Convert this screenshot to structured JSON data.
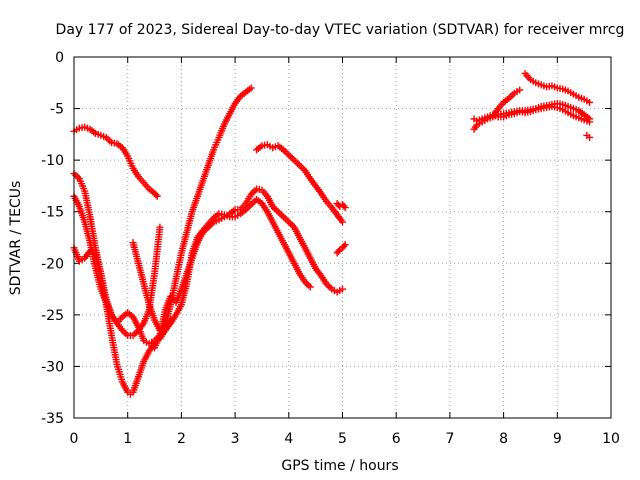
{
  "chart_data": {
    "type": "scatter",
    "title": "Day 177 of 2023, Sidereal Day-to-day VTEC variation (SDTVAR) for receiver mrcg",
    "xlabel": "GPS time / hours",
    "ylabel": "SDTVAR / TECUs",
    "xlim": [
      0,
      10
    ],
    "ylim": [
      -35,
      0
    ],
    "x_ticks": [
      0,
      1,
      2,
      3,
      4,
      5,
      6,
      7,
      8,
      9,
      10
    ],
    "y_ticks": [
      0,
      -5,
      -10,
      -15,
      -20,
      -25,
      -30,
      -35
    ],
    "x_tick_labels": [
      "0",
      "1",
      "2",
      "3",
      "4",
      "5",
      "6",
      "7",
      "8",
      "9",
      "10"
    ],
    "y_tick_labels": [
      "0",
      "-5",
      "-10",
      "-15",
      "-20",
      "-25",
      "-30",
      "-35"
    ],
    "grid": true,
    "marker": "plus",
    "colors": {
      "series": "#ff0000",
      "grid": "#a0a0a0",
      "axes": "#000000"
    },
    "series": [
      {
        "points": [
          [
            0.0,
            -7.2
          ],
          [
            0.1,
            -6.9
          ],
          [
            0.2,
            -6.8
          ],
          [
            0.3,
            -7.0
          ],
          [
            0.4,
            -7.4
          ],
          [
            0.5,
            -7.6
          ],
          [
            0.6,
            -7.8
          ],
          [
            0.7,
            -8.3
          ],
          [
            0.8,
            -8.4
          ],
          [
            0.9,
            -8.8
          ],
          [
            1.0,
            -9.6
          ],
          [
            1.1,
            -10.8
          ],
          [
            1.2,
            -11.6
          ],
          [
            1.3,
            -12.2
          ],
          [
            1.4,
            -12.8
          ],
          [
            1.5,
            -13.2
          ],
          [
            1.55,
            -13.5
          ]
        ]
      },
      {
        "points": [
          [
            0.0,
            -11.3
          ],
          [
            0.1,
            -11.8
          ],
          [
            0.2,
            -13.0
          ],
          [
            0.3,
            -15.5
          ],
          [
            0.4,
            -18.5
          ],
          [
            0.5,
            -21.0
          ],
          [
            0.6,
            -24.0
          ],
          [
            0.7,
            -27.0
          ],
          [
            0.8,
            -29.8
          ],
          [
            0.9,
            -31.5
          ],
          [
            1.0,
            -32.5
          ],
          [
            1.05,
            -32.7
          ],
          [
            1.1,
            -32.5
          ],
          [
            1.2,
            -31.0
          ],
          [
            1.3,
            -29.5
          ],
          [
            1.4,
            -28.5
          ],
          [
            1.5,
            -27.8
          ]
        ]
      },
      {
        "points": [
          [
            0.0,
            -13.5
          ],
          [
            0.1,
            -14.5
          ],
          [
            0.2,
            -16.0
          ],
          [
            0.3,
            -18.0
          ],
          [
            0.4,
            -20.5
          ],
          [
            0.5,
            -22.5
          ],
          [
            0.6,
            -23.8
          ],
          [
            0.7,
            -25.0
          ],
          [
            0.8,
            -25.8
          ],
          [
            0.9,
            -26.5
          ],
          [
            1.0,
            -27.0
          ],
          [
            1.1,
            -27.0
          ],
          [
            1.2,
            -26.5
          ],
          [
            1.3,
            -25.8
          ],
          [
            1.4,
            -24.5
          ],
          [
            1.5,
            -21.0
          ],
          [
            1.6,
            -16.5
          ]
        ]
      },
      {
        "points": [
          [
            0.0,
            -18.5
          ],
          [
            0.1,
            -19.8
          ],
          [
            0.2,
            -19.5
          ],
          [
            0.3,
            -18.8
          ],
          [
            0.4,
            -19.0
          ],
          [
            0.5,
            -21.0
          ],
          [
            0.6,
            -23.5
          ],
          [
            0.7,
            -25.0
          ],
          [
            0.8,
            -25.8
          ],
          [
            0.9,
            -25.2
          ],
          [
            1.0,
            -24.8
          ],
          [
            1.1,
            -25.2
          ],
          [
            1.2,
            -26.2
          ],
          [
            1.3,
            -27.5
          ],
          [
            1.4,
            -27.8
          ],
          [
            1.5,
            -27.5
          ],
          [
            1.6,
            -27.0
          ],
          [
            1.7,
            -26.5
          ],
          [
            1.8,
            -25.5
          ]
        ]
      },
      {
        "points": [
          [
            1.1,
            -18.0
          ],
          [
            1.2,
            -20.0
          ],
          [
            1.3,
            -22.0
          ],
          [
            1.4,
            -24.0
          ],
          [
            1.5,
            -25.5
          ],
          [
            1.6,
            -26.5
          ],
          [
            1.7,
            -26.0
          ],
          [
            1.8,
            -24.0
          ],
          [
            1.9,
            -21.5
          ],
          [
            2.0,
            -19.0
          ],
          [
            2.1,
            -17.0
          ],
          [
            2.2,
            -15.0
          ],
          [
            2.3,
            -13.5
          ],
          [
            2.4,
            -12.0
          ],
          [
            2.5,
            -10.5
          ],
          [
            2.6,
            -9.0
          ],
          [
            2.7,
            -7.8
          ],
          [
            2.8,
            -6.5
          ],
          [
            2.9,
            -5.5
          ],
          [
            3.0,
            -4.5
          ],
          [
            3.1,
            -3.8
          ],
          [
            3.2,
            -3.4
          ],
          [
            3.3,
            -3.0
          ]
        ]
      },
      {
        "points": [
          [
            1.5,
            -28.2
          ],
          [
            1.6,
            -27.0
          ],
          [
            1.7,
            -24.5
          ],
          [
            1.8,
            -23.2
          ],
          [
            1.9,
            -23.8
          ],
          [
            2.0,
            -22.5
          ],
          [
            2.1,
            -21.0
          ],
          [
            2.2,
            -19.5
          ],
          [
            2.3,
            -18.0
          ],
          [
            2.4,
            -17.0
          ],
          [
            2.5,
            -16.5
          ],
          [
            2.6,
            -16.0
          ],
          [
            2.7,
            -15.8
          ],
          [
            2.8,
            -15.5
          ],
          [
            2.9,
            -15.2
          ],
          [
            3.0,
            -14.8
          ],
          [
            3.1,
            -14.8
          ],
          [
            3.2,
            -14.2
          ],
          [
            3.3,
            -13.3
          ],
          [
            3.4,
            -12.8
          ],
          [
            3.5,
            -12.9
          ],
          [
            3.6,
            -13.5
          ],
          [
            3.7,
            -14.5
          ],
          [
            3.8,
            -15.0
          ],
          [
            3.9,
            -15.5
          ],
          [
            4.0,
            -16.0
          ],
          [
            4.1,
            -16.5
          ],
          [
            4.2,
            -17.5
          ],
          [
            4.3,
            -18.5
          ],
          [
            4.4,
            -19.5
          ],
          [
            4.5,
            -20.5
          ],
          [
            4.6,
            -21.2
          ],
          [
            4.7,
            -22.0
          ],
          [
            4.8,
            -22.5
          ],
          [
            4.9,
            -22.8
          ],
          [
            5.0,
            -22.5
          ]
        ]
      },
      {
        "points": [
          [
            1.6,
            -27.3
          ],
          [
            1.7,
            -26.5
          ],
          [
            1.8,
            -25.8
          ],
          [
            1.9,
            -25.0
          ],
          [
            2.0,
            -24.0
          ],
          [
            2.1,
            -22.0
          ],
          [
            2.2,
            -19.0
          ],
          [
            2.3,
            -17.5
          ],
          [
            2.4,
            -16.8
          ],
          [
            2.5,
            -16.2
          ],
          [
            2.6,
            -15.6
          ],
          [
            2.7,
            -15.2
          ],
          [
            2.8,
            -15.3
          ],
          [
            2.9,
            -15.5
          ],
          [
            3.0,
            -15.5
          ],
          [
            3.1,
            -15.2
          ],
          [
            3.2,
            -14.8
          ],
          [
            3.3,
            -14.3
          ],
          [
            3.4,
            -13.8
          ],
          [
            3.5,
            -14.2
          ],
          [
            3.6,
            -15.0
          ],
          [
            3.7,
            -16.0
          ],
          [
            3.8,
            -17.0
          ],
          [
            3.9,
            -18.0
          ],
          [
            4.0,
            -19.0
          ],
          [
            4.1,
            -20.0
          ],
          [
            4.2,
            -21.0
          ],
          [
            4.3,
            -21.8
          ],
          [
            4.4,
            -22.3
          ]
        ]
      },
      {
        "points": [
          [
            3.4,
            -9.0
          ],
          [
            3.5,
            -8.6
          ],
          [
            3.6,
            -8.5
          ],
          [
            3.7,
            -8.8
          ],
          [
            3.8,
            -8.6
          ],
          [
            3.9,
            -9.0
          ],
          [
            4.0,
            -9.5
          ],
          [
            4.1,
            -10.0
          ],
          [
            4.2,
            -10.5
          ],
          [
            4.3,
            -11.0
          ],
          [
            4.4,
            -11.8
          ],
          [
            4.5,
            -12.5
          ],
          [
            4.6,
            -13.2
          ],
          [
            4.7,
            -14.0
          ],
          [
            4.8,
            -14.6
          ],
          [
            4.9,
            -15.3
          ],
          [
            5.0,
            -16.0
          ]
        ]
      },
      {
        "points": [
          [
            4.9,
            -14.2
          ],
          [
            4.95,
            -14.5
          ],
          [
            5.0,
            -14.3
          ],
          [
            5.05,
            -14.6
          ]
        ]
      },
      {
        "points": [
          [
            4.9,
            -19.0
          ],
          [
            4.95,
            -18.7
          ],
          [
            5.0,
            -18.5
          ],
          [
            5.05,
            -18.2
          ]
        ]
      },
      {
        "points": [
          [
            7.45,
            -7.0
          ],
          [
            7.5,
            -6.6
          ],
          [
            7.6,
            -6.3
          ],
          [
            7.7,
            -6.0
          ],
          [
            7.8,
            -5.8
          ],
          [
            7.9,
            -5.6
          ],
          [
            8.0,
            -5.5
          ],
          [
            8.1,
            -5.4
          ],
          [
            8.2,
            -5.3
          ],
          [
            8.3,
            -5.2
          ],
          [
            8.4,
            -5.2
          ],
          [
            8.5,
            -5.1
          ],
          [
            8.6,
            -5.0
          ],
          [
            8.7,
            -4.8
          ],
          [
            8.8,
            -4.7
          ],
          [
            8.9,
            -4.6
          ],
          [
            9.0,
            -4.5
          ],
          [
            9.1,
            -4.6
          ],
          [
            9.2,
            -4.8
          ],
          [
            9.3,
            -5.0
          ],
          [
            9.4,
            -5.2
          ],
          [
            9.5,
            -5.6
          ],
          [
            9.6,
            -6.0
          ]
        ]
      },
      {
        "points": [
          [
            7.45,
            -6.0
          ],
          [
            7.5,
            -6.2
          ],
          [
            7.6,
            -6.0
          ],
          [
            7.7,
            -5.8
          ],
          [
            7.8,
            -5.6
          ],
          [
            7.9,
            -5.8
          ],
          [
            8.0,
            -5.8
          ],
          [
            8.1,
            -5.6
          ],
          [
            8.2,
            -5.5
          ],
          [
            8.3,
            -5.3
          ],
          [
            8.4,
            -5.4
          ],
          [
            8.5,
            -5.3
          ],
          [
            8.6,
            -5.1
          ],
          [
            8.7,
            -5.0
          ],
          [
            8.8,
            -4.9
          ],
          [
            8.9,
            -4.8
          ],
          [
            9.0,
            -4.9
          ],
          [
            9.1,
            -5.1
          ],
          [
            9.2,
            -5.4
          ],
          [
            9.3,
            -5.7
          ],
          [
            9.4,
            -5.9
          ],
          [
            9.5,
            -6.1
          ],
          [
            9.6,
            -6.3
          ]
        ]
      },
      {
        "points": [
          [
            7.8,
            -5.8
          ],
          [
            7.9,
            -5.0
          ],
          [
            8.0,
            -4.4
          ],
          [
            8.1,
            -4.0
          ],
          [
            8.2,
            -3.5
          ],
          [
            8.3,
            -3.2
          ]
        ]
      },
      {
        "points": [
          [
            8.4,
            -1.6
          ],
          [
            8.5,
            -2.2
          ],
          [
            8.6,
            -2.5
          ],
          [
            8.7,
            -2.7
          ],
          [
            8.8,
            -2.9
          ],
          [
            8.9,
            -2.8
          ],
          [
            9.0,
            -3.0
          ],
          [
            9.1,
            -3.1
          ],
          [
            9.2,
            -3.3
          ],
          [
            9.3,
            -3.6
          ],
          [
            9.4,
            -3.9
          ],
          [
            9.5,
            -4.1
          ],
          [
            9.6,
            -4.4
          ]
        ]
      },
      {
        "points": [
          [
            9.55,
            -7.6
          ],
          [
            9.6,
            -7.8
          ]
        ]
      }
    ]
  }
}
